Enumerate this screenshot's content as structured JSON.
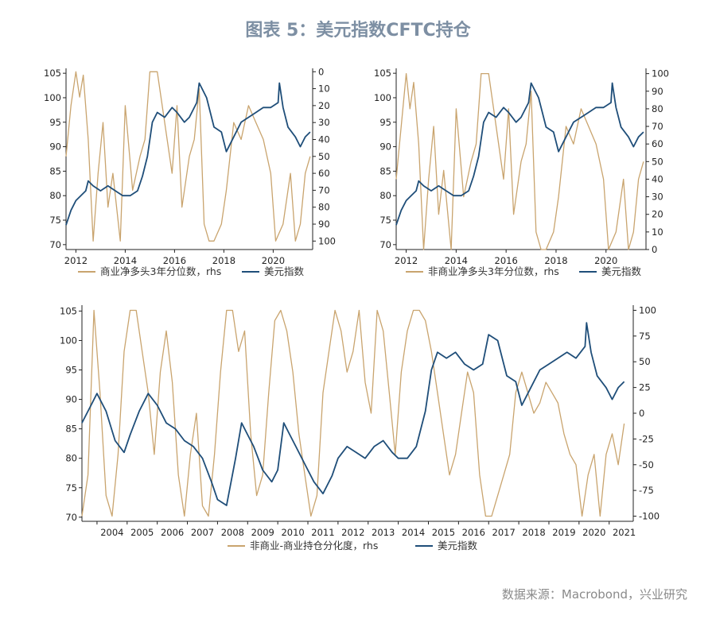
{
  "title": "图表 5：美元指数CFTC持仓",
  "source": "数据来源：Macrobond，兴业研究",
  "colors": {
    "usd": "#1f4e79",
    "cftc": "#c9a46e",
    "title": "#7d8fa3",
    "axis": "#222222"
  },
  "chart_data": [
    {
      "type": "line",
      "lhs_ticks": [
        70,
        75,
        80,
        85,
        90,
        95,
        100,
        105
      ],
      "lhs_range": [
        69,
        106
      ],
      "rhs_ticks": [
        0,
        10,
        20,
        30,
        40,
        50,
        60,
        70,
        80,
        90,
        100
      ],
      "rhs_range": [
        -2,
        105
      ],
      "rhs_inverted": true,
      "x_ticks": [
        "2012",
        "2014",
        "2016",
        "2018",
        "2020"
      ],
      "x_range": [
        2011.6,
        2021.6
      ],
      "x_tick_values": [
        2012,
        2014,
        2016,
        2018,
        2020
      ],
      "legend": [
        "商业净多头3年分位数，rhs",
        "美元指数"
      ],
      "series": [
        {
          "name": "美元指数",
          "axis": "lhs",
          "x": [
            2011.6,
            2011.8,
            2012.0,
            2012.2,
            2012.4,
            2012.5,
            2012.7,
            2013.0,
            2013.3,
            2013.6,
            2013.9,
            2014.2,
            2014.5,
            2014.7,
            2014.9,
            2015.1,
            2015.3,
            2015.6,
            2015.9,
            2016.1,
            2016.4,
            2016.6,
            2016.9,
            2017.0,
            2017.3,
            2017.6,
            2017.9,
            2018.1,
            2018.4,
            2018.7,
            2019.0,
            2019.3,
            2019.6,
            2019.9,
            2020.2,
            2020.25,
            2020.4,
            2020.6,
            2020.9,
            2021.1,
            2021.3,
            2021.5
          ],
          "y": [
            74,
            77,
            79,
            80,
            81,
            83,
            82,
            81,
            82,
            81,
            80,
            80,
            81,
            84,
            88,
            95,
            97,
            96,
            98,
            97,
            95,
            96,
            99,
            103,
            100,
            94,
            93,
            89,
            92,
            95,
            96,
            97,
            98,
            98,
            99,
            103,
            98,
            94,
            92,
            90,
            92,
            93
          ]
        },
        {
          "name": "商业净多头3年分位数",
          "axis": "rhs",
          "x": [
            2011.6,
            2011.8,
            2012.0,
            2012.15,
            2012.3,
            2012.5,
            2012.7,
            2012.9,
            2013.1,
            2013.3,
            2013.5,
            2013.8,
            2014.0,
            2014.3,
            2014.6,
            2014.8,
            2015.0,
            2015.3,
            2015.6,
            2015.9,
            2016.1,
            2016.3,
            2016.6,
            2016.8,
            2017.0,
            2017.2,
            2017.4,
            2017.6,
            2017.9,
            2018.1,
            2018.4,
            2018.7,
            2019.0,
            2019.3,
            2019.6,
            2019.9,
            2020.1,
            2020.4,
            2020.7,
            2020.9,
            2021.1,
            2021.3,
            2021.5
          ],
          "y": [
            50,
            20,
            0,
            15,
            2,
            40,
            100,
            60,
            30,
            80,
            60,
            100,
            20,
            70,
            50,
            40,
            0,
            0,
            30,
            60,
            20,
            80,
            50,
            40,
            10,
            90,
            100,
            100,
            90,
            70,
            30,
            40,
            20,
            30,
            40,
            60,
            100,
            90,
            60,
            100,
            90,
            60,
            50
          ]
        }
      ]
    },
    {
      "type": "line",
      "lhs_ticks": [
        70,
        75,
        80,
        85,
        90,
        95,
        100,
        105
      ],
      "lhs_range": [
        69,
        106
      ],
      "rhs_ticks": [
        0,
        10,
        20,
        30,
        40,
        50,
        60,
        70,
        80,
        90,
        100
      ],
      "rhs_range": [
        0,
        103
      ],
      "rhs_inverted": false,
      "x_ticks": [
        "2012",
        "2014",
        "2016",
        "2018",
        "2020"
      ],
      "x_range": [
        2011.6,
        2021.6
      ],
      "x_tick_values": [
        2012,
        2014,
        2016,
        2018,
        2020
      ],
      "legend": [
        "非商业净多头3年分位数，rhs",
        "美元指数"
      ],
      "series": [
        {
          "name": "美元指数",
          "axis": "lhs",
          "x": [
            2011.6,
            2011.8,
            2012.0,
            2012.2,
            2012.4,
            2012.5,
            2012.7,
            2013.0,
            2013.3,
            2013.6,
            2013.9,
            2014.2,
            2014.5,
            2014.7,
            2014.9,
            2015.1,
            2015.3,
            2015.6,
            2015.9,
            2016.1,
            2016.4,
            2016.6,
            2016.9,
            2017.0,
            2017.3,
            2017.6,
            2017.9,
            2018.1,
            2018.4,
            2018.7,
            2019.0,
            2019.3,
            2019.6,
            2019.9,
            2020.2,
            2020.25,
            2020.4,
            2020.6,
            2020.9,
            2021.1,
            2021.3,
            2021.5
          ],
          "y": [
            74,
            77,
            79,
            80,
            81,
            83,
            82,
            81,
            82,
            81,
            80,
            80,
            81,
            84,
            88,
            95,
            97,
            96,
            98,
            97,
            95,
            96,
            99,
            103,
            100,
            94,
            93,
            89,
            92,
            95,
            96,
            97,
            98,
            98,
            99,
            103,
            98,
            94,
            92,
            90,
            92,
            93
          ]
        },
        {
          "name": "非商业净多头3年分位数",
          "axis": "rhs",
          "x": [
            2011.6,
            2011.8,
            2012.0,
            2012.15,
            2012.3,
            2012.5,
            2012.7,
            2012.9,
            2013.1,
            2013.3,
            2013.5,
            2013.8,
            2014.0,
            2014.3,
            2014.6,
            2014.8,
            2015.0,
            2015.3,
            2015.6,
            2015.9,
            2016.1,
            2016.3,
            2016.6,
            2016.8,
            2017.0,
            2017.2,
            2017.4,
            2017.6,
            2017.9,
            2018.1,
            2018.4,
            2018.7,
            2019.0,
            2019.3,
            2019.6,
            2019.9,
            2020.1,
            2020.4,
            2020.7,
            2020.9,
            2021.1,
            2021.3,
            2021.5
          ],
          "y": [
            40,
            70,
            100,
            80,
            95,
            60,
            0,
            40,
            70,
            20,
            45,
            0,
            80,
            30,
            50,
            60,
            100,
            100,
            70,
            40,
            80,
            20,
            50,
            60,
            90,
            10,
            0,
            0,
            10,
            30,
            70,
            60,
            80,
            70,
            60,
            40,
            0,
            10,
            40,
            0,
            10,
            40,
            50
          ]
        }
      ]
    },
    {
      "type": "line",
      "lhs_ticks": [
        70,
        75,
        80,
        85,
        90,
        95,
        100,
        105
      ],
      "lhs_range": [
        69.3,
        106
      ],
      "rhs_ticks": [
        -100,
        -75,
        -50,
        -25,
        0,
        25,
        50,
        75,
        100
      ],
      "rhs_range": [
        -105,
        105
      ],
      "rhs_inverted": false,
      "x_ticks": [
        "2004",
        "2005",
        "2006",
        "2007",
        "2008",
        "2009",
        "2010",
        "2011",
        "2012",
        "2013",
        "2014",
        "2015",
        "2016",
        "2017",
        "2018",
        "2019",
        "2020",
        "2021"
      ],
      "x_range": [
        2003.5,
        2021.8
      ],
      "x_tick_values": [
        2004,
        2005,
        2006,
        2007,
        2008,
        2009,
        2010,
        2011,
        2012,
        2013,
        2014,
        2015,
        2016,
        2017,
        2018,
        2019,
        2020,
        2021
      ],
      "legend": [
        "非商业-商业持仓分化度，rhs",
        "美元指数"
      ],
      "series": [
        {
          "name": "美元指数",
          "axis": "lhs",
          "x": [
            2003.5,
            2003.8,
            2004.0,
            2004.3,
            2004.6,
            2004.9,
            2005.1,
            2005.4,
            2005.7,
            2006.0,
            2006.3,
            2006.6,
            2006.9,
            2007.2,
            2007.5,
            2007.8,
            2008.0,
            2008.3,
            2008.6,
            2008.8,
            2009.0,
            2009.2,
            2009.5,
            2009.8,
            2010.0,
            2010.2,
            2010.4,
            2010.6,
            2010.9,
            2011.2,
            2011.5,
            2011.8,
            2012.0,
            2012.3,
            2012.6,
            2012.9,
            2013.2,
            2013.5,
            2013.8,
            2014.0,
            2014.3,
            2014.6,
            2014.9,
            2015.1,
            2015.3,
            2015.6,
            2015.9,
            2016.2,
            2016.5,
            2016.8,
            2017.0,
            2017.3,
            2017.6,
            2017.9,
            2018.1,
            2018.4,
            2018.7,
            2019.0,
            2019.3,
            2019.6,
            2019.9,
            2020.2,
            2020.25,
            2020.4,
            2020.6,
            2020.9,
            2021.1,
            2021.3,
            2021.5
          ],
          "y": [
            86,
            89,
            91,
            88,
            83,
            81,
            84,
            88,
            91,
            89,
            86,
            85,
            83,
            82,
            80,
            76,
            73,
            72,
            80,
            86,
            84,
            82,
            78,
            76,
            78,
            86,
            84,
            82,
            79,
            76,
            74,
            77,
            80,
            82,
            81,
            80,
            82,
            83,
            81,
            80,
            80,
            82,
            88,
            95,
            98,
            97,
            98,
            96,
            95,
            96,
            101,
            100,
            94,
            93,
            89,
            92,
            95,
            96,
            97,
            98,
            97,
            99,
            103,
            98,
            94,
            92,
            90,
            92,
            93
          ]
        },
        {
          "name": "非商业-商业持仓分化度",
          "axis": "rhs",
          "x": [
            2003.5,
            2003.7,
            2003.9,
            2004.1,
            2004.3,
            2004.5,
            2004.7,
            2004.9,
            2005.1,
            2005.3,
            2005.5,
            2005.7,
            2005.9,
            2006.1,
            2006.3,
            2006.5,
            2006.7,
            2006.9,
            2007.1,
            2007.3,
            2007.5,
            2007.7,
            2007.9,
            2008.1,
            2008.3,
            2008.5,
            2008.7,
            2008.9,
            2009.1,
            2009.3,
            2009.5,
            2009.7,
            2009.9,
            2010.1,
            2010.3,
            2010.5,
            2010.7,
            2010.9,
            2011.1,
            2011.3,
            2011.5,
            2011.7,
            2011.9,
            2012.1,
            2012.3,
            2012.5,
            2012.7,
            2012.9,
            2013.1,
            2013.3,
            2013.5,
            2013.7,
            2013.9,
            2014.1,
            2014.3,
            2014.5,
            2014.7,
            2014.9,
            2015.1,
            2015.3,
            2015.5,
            2015.7,
            2015.9,
            2016.1,
            2016.3,
            2016.5,
            2016.7,
            2016.9,
            2017.1,
            2017.3,
            2017.5,
            2017.7,
            2017.9,
            2018.1,
            2018.3,
            2018.5,
            2018.7,
            2018.9,
            2019.1,
            2019.3,
            2019.5,
            2019.7,
            2019.9,
            2020.1,
            2020.3,
            2020.5,
            2020.7,
            2020.9,
            2021.1,
            2021.3,
            2021.5
          ],
          "y": [
            -100,
            -60,
            100,
            20,
            -80,
            -100,
            -40,
            60,
            100,
            100,
            60,
            20,
            -40,
            40,
            80,
            30,
            -60,
            -100,
            -40,
            0,
            -90,
            -100,
            -40,
            40,
            100,
            100,
            60,
            80,
            -20,
            -80,
            -60,
            20,
            90,
            100,
            80,
            40,
            -20,
            -60,
            -100,
            -80,
            20,
            60,
            100,
            80,
            40,
            60,
            100,
            30,
            0,
            100,
            80,
            20,
            -40,
            40,
            80,
            100,
            100,
            90,
            60,
            20,
            -20,
            -60,
            -40,
            0,
            40,
            20,
            -60,
            -100,
            -100,
            -80,
            -60,
            -40,
            20,
            40,
            20,
            0,
            10,
            30,
            20,
            10,
            -20,
            -40,
            -50,
            -100,
            -60,
            -40,
            -100,
            -40,
            -20,
            -50,
            -10
          ]
        }
      ]
    }
  ]
}
